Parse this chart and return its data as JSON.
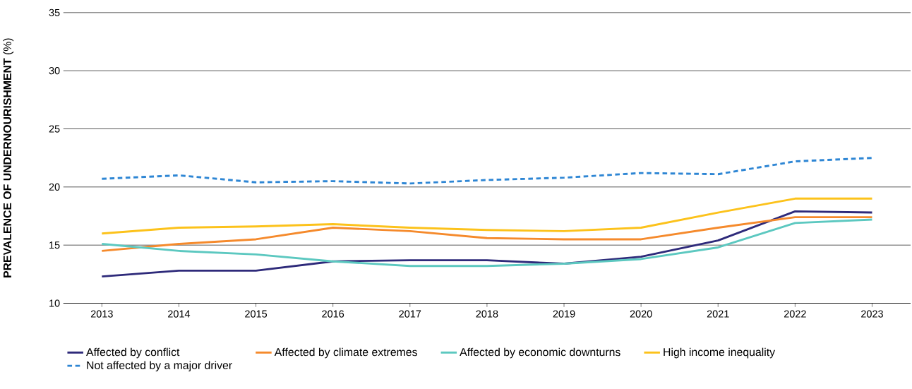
{
  "chart_data": {
    "type": "line",
    "ylabel": "**PREVALENCE OF UNDERNOURISHMENT** (%)",
    "x": [
      2013,
      2014,
      2015,
      2016,
      2017,
      2018,
      2019,
      2020,
      2021,
      2022,
      2023
    ],
    "xlim": [
      2012.5,
      2023.5
    ],
    "xticks": [
      2013,
      2014,
      2015,
      2016,
      2017,
      2018,
      2019,
      2020,
      2021,
      2022,
      2023
    ],
    "ylim": [
      10,
      35
    ],
    "yticks": [
      10,
      15,
      20,
      25,
      30,
      35
    ],
    "grid": "y",
    "legend": "bottom",
    "marker": "none",
    "series": [
      {
        "name": "Affected by conflict",
        "color": "#2e2a7a",
        "line_style": "solid",
        "values": [
          12.3,
          12.8,
          12.8,
          13.6,
          13.7,
          13.7,
          13.4,
          14.0,
          15.4,
          17.9,
          17.8
        ]
      },
      {
        "name": "Affected by climate extremes",
        "color": "#f58a2c",
        "line_style": "solid",
        "values": [
          14.5,
          15.1,
          15.5,
          16.5,
          16.2,
          15.6,
          15.5,
          15.5,
          16.5,
          17.4,
          17.4
        ]
      },
      {
        "name": "Affected by economic downturns",
        "color": "#5cc8c0",
        "line_style": "solid",
        "values": [
          15.1,
          14.5,
          14.2,
          13.6,
          13.2,
          13.2,
          13.4,
          13.8,
          14.8,
          16.9,
          17.2
        ]
      },
      {
        "name": "High income inequality",
        "color": "#fcc21b",
        "line_style": "solid",
        "values": [
          16.0,
          16.5,
          16.6,
          16.8,
          16.5,
          16.3,
          16.2,
          16.5,
          17.8,
          19.0,
          19.0
        ]
      },
      {
        "name": "Not affected by a major driver",
        "color": "#2e86d4",
        "line_style": "dashed",
        "values": [
          20.7,
          21.0,
          20.4,
          20.5,
          20.3,
          20.6,
          20.8,
          21.2,
          21.1,
          22.2,
          22.5
        ]
      }
    ]
  }
}
